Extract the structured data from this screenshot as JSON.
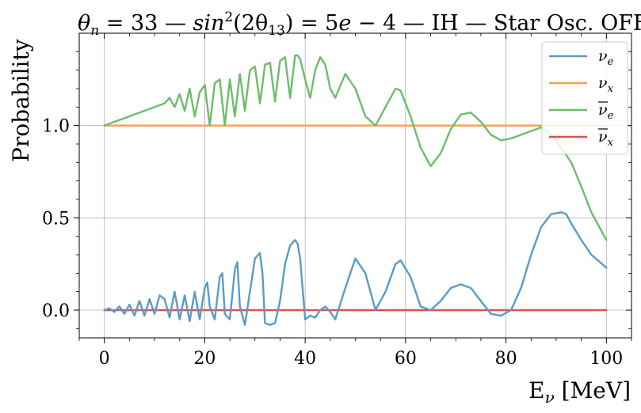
{
  "chart_data": {
    "type": "line",
    "title": "θn = 33 — sin²(2θ13) = 5e − 4 — IH — Star Osc. OFF",
    "title_parts": {
      "part1": "θ",
      "part1_sub": "n",
      "part2": " = 33 — ",
      "part3": "sin",
      "part3_sup": "2",
      "part4": "(2θ",
      "part4_sub": "13",
      "part5": ") = 5",
      "part6": "e",
      "part7": " − 4 — IH — Star Osc. OFF"
    },
    "xlabel": "E",
    "xlabel_sub": "ν",
    "xlabel_unit": " [MeV]",
    "ylabel": "Probability",
    "xlim": [
      -5,
      105
    ],
    "ylim": [
      -0.15,
      1.5
    ],
    "xticks": [
      0,
      20,
      40,
      60,
      80,
      100
    ],
    "xtick_labels": [
      "0",
      "20",
      "40",
      "60",
      "80",
      "100"
    ],
    "yticks": [
      0.0,
      0.5,
      1.0
    ],
    "ytick_labels": [
      "0.0",
      "0.5",
      "1.0"
    ],
    "grid": true,
    "legend_position": "top-right",
    "series": [
      {
        "name": "νe",
        "name_base": "ν",
        "name_sub": "e",
        "overline": false,
        "color": "#5b9bc7",
        "x": [
          0,
          1,
          2,
          3,
          4,
          5,
          6,
          7,
          8,
          9,
          10,
          11,
          12,
          13,
          14,
          15,
          16,
          17,
          18,
          19,
          20,
          20.5,
          21,
          22,
          23,
          23.5,
          24,
          25,
          26,
          26.5,
          27,
          28,
          29,
          30,
          31,
          31.5,
          32,
          33,
          34,
          35,
          36,
          37,
          38,
          38.5,
          39,
          40,
          41,
          42,
          43,
          44,
          45,
          46,
          48,
          50,
          52,
          54,
          56,
          58,
          59,
          61,
          63,
          65,
          67,
          69,
          71,
          73,
          75,
          77,
          79,
          81,
          83,
          85,
          87,
          89,
          91,
          92,
          93,
          95,
          97,
          100
        ],
        "y": [
          0,
          0.01,
          -0.01,
          0.02,
          -0.02,
          0.03,
          -0.03,
          0.05,
          -0.03,
          0.06,
          -0.02,
          0.08,
          0.06,
          -0.04,
          0.1,
          -0.05,
          0.08,
          -0.06,
          0.1,
          -0.05,
          0.12,
          0.15,
          0.02,
          -0.05,
          0.18,
          0.2,
          -0.02,
          -0.05,
          0.22,
          0.26,
          0.02,
          -0.08,
          0.1,
          0.28,
          0.31,
          0.2,
          -0.07,
          -0.08,
          -0.07,
          0.05,
          0.25,
          0.35,
          0.38,
          0.36,
          0.28,
          -0.05,
          -0.03,
          -0.04,
          0.0,
          0.02,
          -0.01,
          -0.05,
          0.12,
          0.28,
          0.2,
          0.0,
          0.1,
          0.25,
          0.27,
          0.18,
          0.02,
          0.0,
          0.05,
          0.12,
          0.14,
          0.12,
          0.05,
          -0.02,
          -0.03,
          0.0,
          0.12,
          0.3,
          0.45,
          0.52,
          0.53,
          0.52,
          0.47,
          0.38,
          0.3,
          0.23
        ]
      },
      {
        "name": "νx",
        "name_base": "ν",
        "name_sub": "x",
        "overline": false,
        "color": "#f5a04b",
        "x": [
          0,
          100
        ],
        "y": [
          1.0,
          1.0
        ]
      },
      {
        "name": "ν̄e",
        "name_base": "ν",
        "name_sub": "e",
        "overline": true,
        "color": "#6dbd6a",
        "x": [
          0,
          2,
          4,
          6,
          8,
          10,
          12,
          13,
          14,
          15,
          16,
          17,
          18,
          19,
          20,
          21,
          22,
          23,
          24,
          25,
          26,
          27,
          28,
          29,
          30,
          31,
          32,
          33,
          34,
          35,
          36,
          37,
          38,
          38.5,
          39,
          40,
          41,
          42,
          43,
          44,
          45,
          46,
          48,
          50,
          52,
          54,
          56,
          58,
          59,
          61,
          63,
          65,
          67,
          69,
          71,
          73,
          75,
          77,
          79,
          81,
          83,
          85,
          87,
          89,
          91,
          93,
          95,
          97,
          100
        ],
        "y": [
          1.0,
          1.02,
          1.04,
          1.06,
          1.08,
          1.1,
          1.12,
          1.15,
          1.1,
          1.17,
          1.08,
          1.2,
          1.05,
          1.18,
          1.22,
          1.0,
          1.23,
          1.25,
          1.0,
          1.25,
          1.05,
          1.28,
          1.08,
          1.3,
          1.32,
          1.12,
          1.33,
          1.34,
          1.13,
          1.35,
          1.37,
          1.15,
          1.38,
          1.38,
          1.36,
          1.25,
          1.15,
          1.3,
          1.37,
          1.33,
          1.2,
          1.15,
          1.28,
          1.2,
          1.05,
          1.0,
          1.1,
          1.2,
          1.19,
          1.05,
          0.88,
          0.78,
          0.85,
          0.98,
          1.06,
          1.07,
          1.02,
          0.95,
          0.92,
          0.93,
          0.95,
          0.97,
          0.99,
          0.95,
          0.88,
          0.8,
          0.67,
          0.53,
          0.38
        ]
      },
      {
        "name": "ν̄x",
        "name_base": "ν",
        "name_sub": "x",
        "overline": true,
        "color": "#d9514e",
        "x": [
          0,
          100
        ],
        "y": [
          0.0,
          0.0
        ]
      }
    ]
  }
}
